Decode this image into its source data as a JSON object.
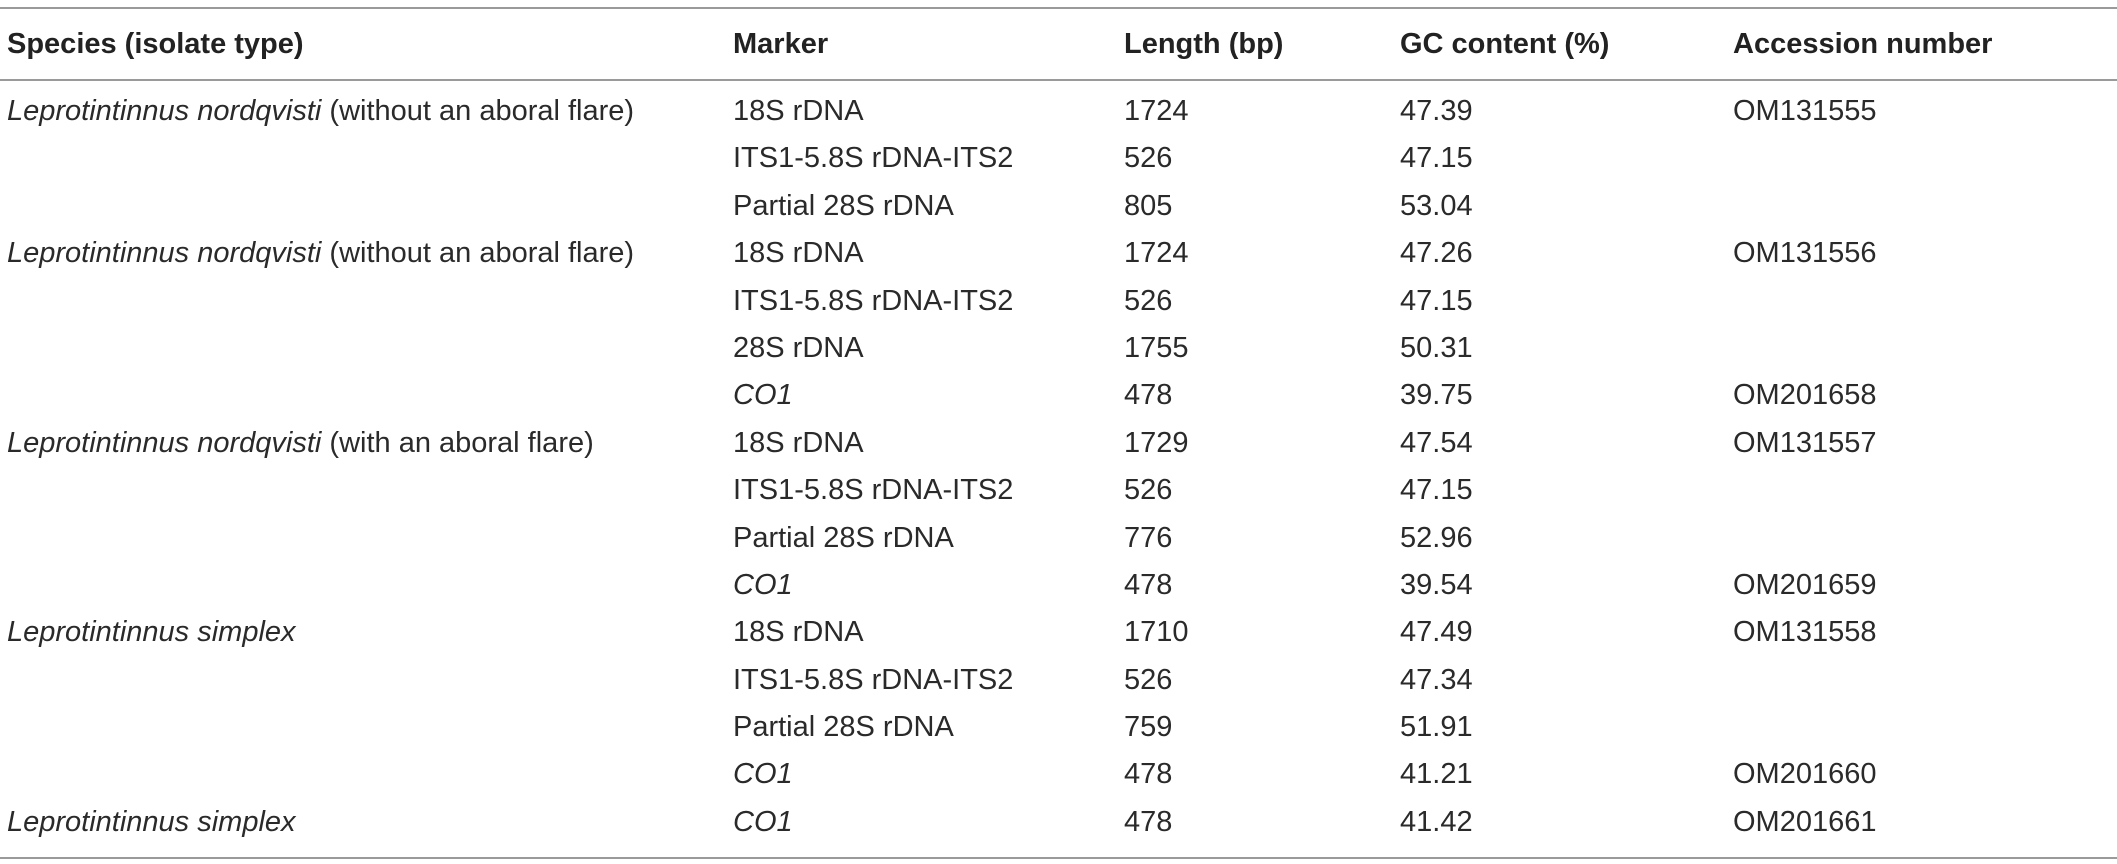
{
  "table": {
    "headers": {
      "species": "Species (isolate type)",
      "marker": "Marker",
      "length": "Length (bp)",
      "gc": "GC content (%)",
      "accession": "Accession number"
    },
    "rows": [
      {
        "species_italic": "Leprotintinnus nordqvisti",
        "species_suffix": " (without an aboral flare)",
        "marker": "18S rDNA",
        "length": "1724",
        "gc": "47.39",
        "accession": "OM131555"
      },
      {
        "species_italic": "",
        "species_suffix": "",
        "marker": "ITS1-5.8S rDNA-ITS2",
        "length": "526",
        "gc": "47.15",
        "accession": ""
      },
      {
        "species_italic": "",
        "species_suffix": "",
        "marker": "Partial 28S rDNA",
        "length": "805",
        "gc": "53.04",
        "accession": ""
      },
      {
        "species_italic": "Leprotintinnus nordqvisti",
        "species_suffix": " (without an aboral flare)",
        "marker": "18S rDNA",
        "length": "1724",
        "gc": "47.26",
        "accession": "OM131556"
      },
      {
        "species_italic": "",
        "species_suffix": "",
        "marker": "ITS1-5.8S rDNA-ITS2",
        "length": "526",
        "gc": "47.15",
        "accession": ""
      },
      {
        "species_italic": "",
        "species_suffix": "",
        "marker": "28S rDNA",
        "length": "1755",
        "gc": "50.31",
        "accession": ""
      },
      {
        "species_italic": "",
        "species_suffix": "",
        "marker_italic": "CO1",
        "length": "478",
        "gc": "39.75",
        "accession": "OM201658"
      },
      {
        "species_italic": "Leprotintinnus nordqvisti",
        "species_suffix": " (with an aboral flare)",
        "marker": "18S rDNA",
        "length": "1729",
        "gc": "47.54",
        "accession": "OM131557"
      },
      {
        "species_italic": "",
        "species_suffix": "",
        "marker": "ITS1-5.8S rDNA-ITS2",
        "length": "526",
        "gc": "47.15",
        "accession": ""
      },
      {
        "species_italic": "",
        "species_suffix": "",
        "marker": "Partial 28S rDNA",
        "length": "776",
        "gc": "52.96",
        "accession": ""
      },
      {
        "species_italic": "",
        "species_suffix": "",
        "marker_italic": "CO1",
        "length": "478",
        "gc": "39.54",
        "accession": "OM201659"
      },
      {
        "species_italic": "Leprotintinnus simplex",
        "species_suffix": "",
        "marker": "18S rDNA",
        "length": "1710",
        "gc": "47.49",
        "accession": "OM131558"
      },
      {
        "species_italic": "",
        "species_suffix": "",
        "marker": "ITS1-5.8S rDNA-ITS2",
        "length": "526",
        "gc": "47.34",
        "accession": ""
      },
      {
        "species_italic": "",
        "species_suffix": "",
        "marker": "Partial 28S rDNA",
        "length": "759",
        "gc": "51.91",
        "accession": ""
      },
      {
        "species_italic": "",
        "species_suffix": "",
        "marker_italic": "CO1",
        "length": "478",
        "gc": "41.21",
        "accession": "OM201660"
      },
      {
        "species_italic": "Leprotintinnus simplex",
        "species_suffix": "",
        "marker_italic": "CO1",
        "length": "478",
        "gc": "41.42",
        "accession": "OM201661"
      }
    ]
  }
}
